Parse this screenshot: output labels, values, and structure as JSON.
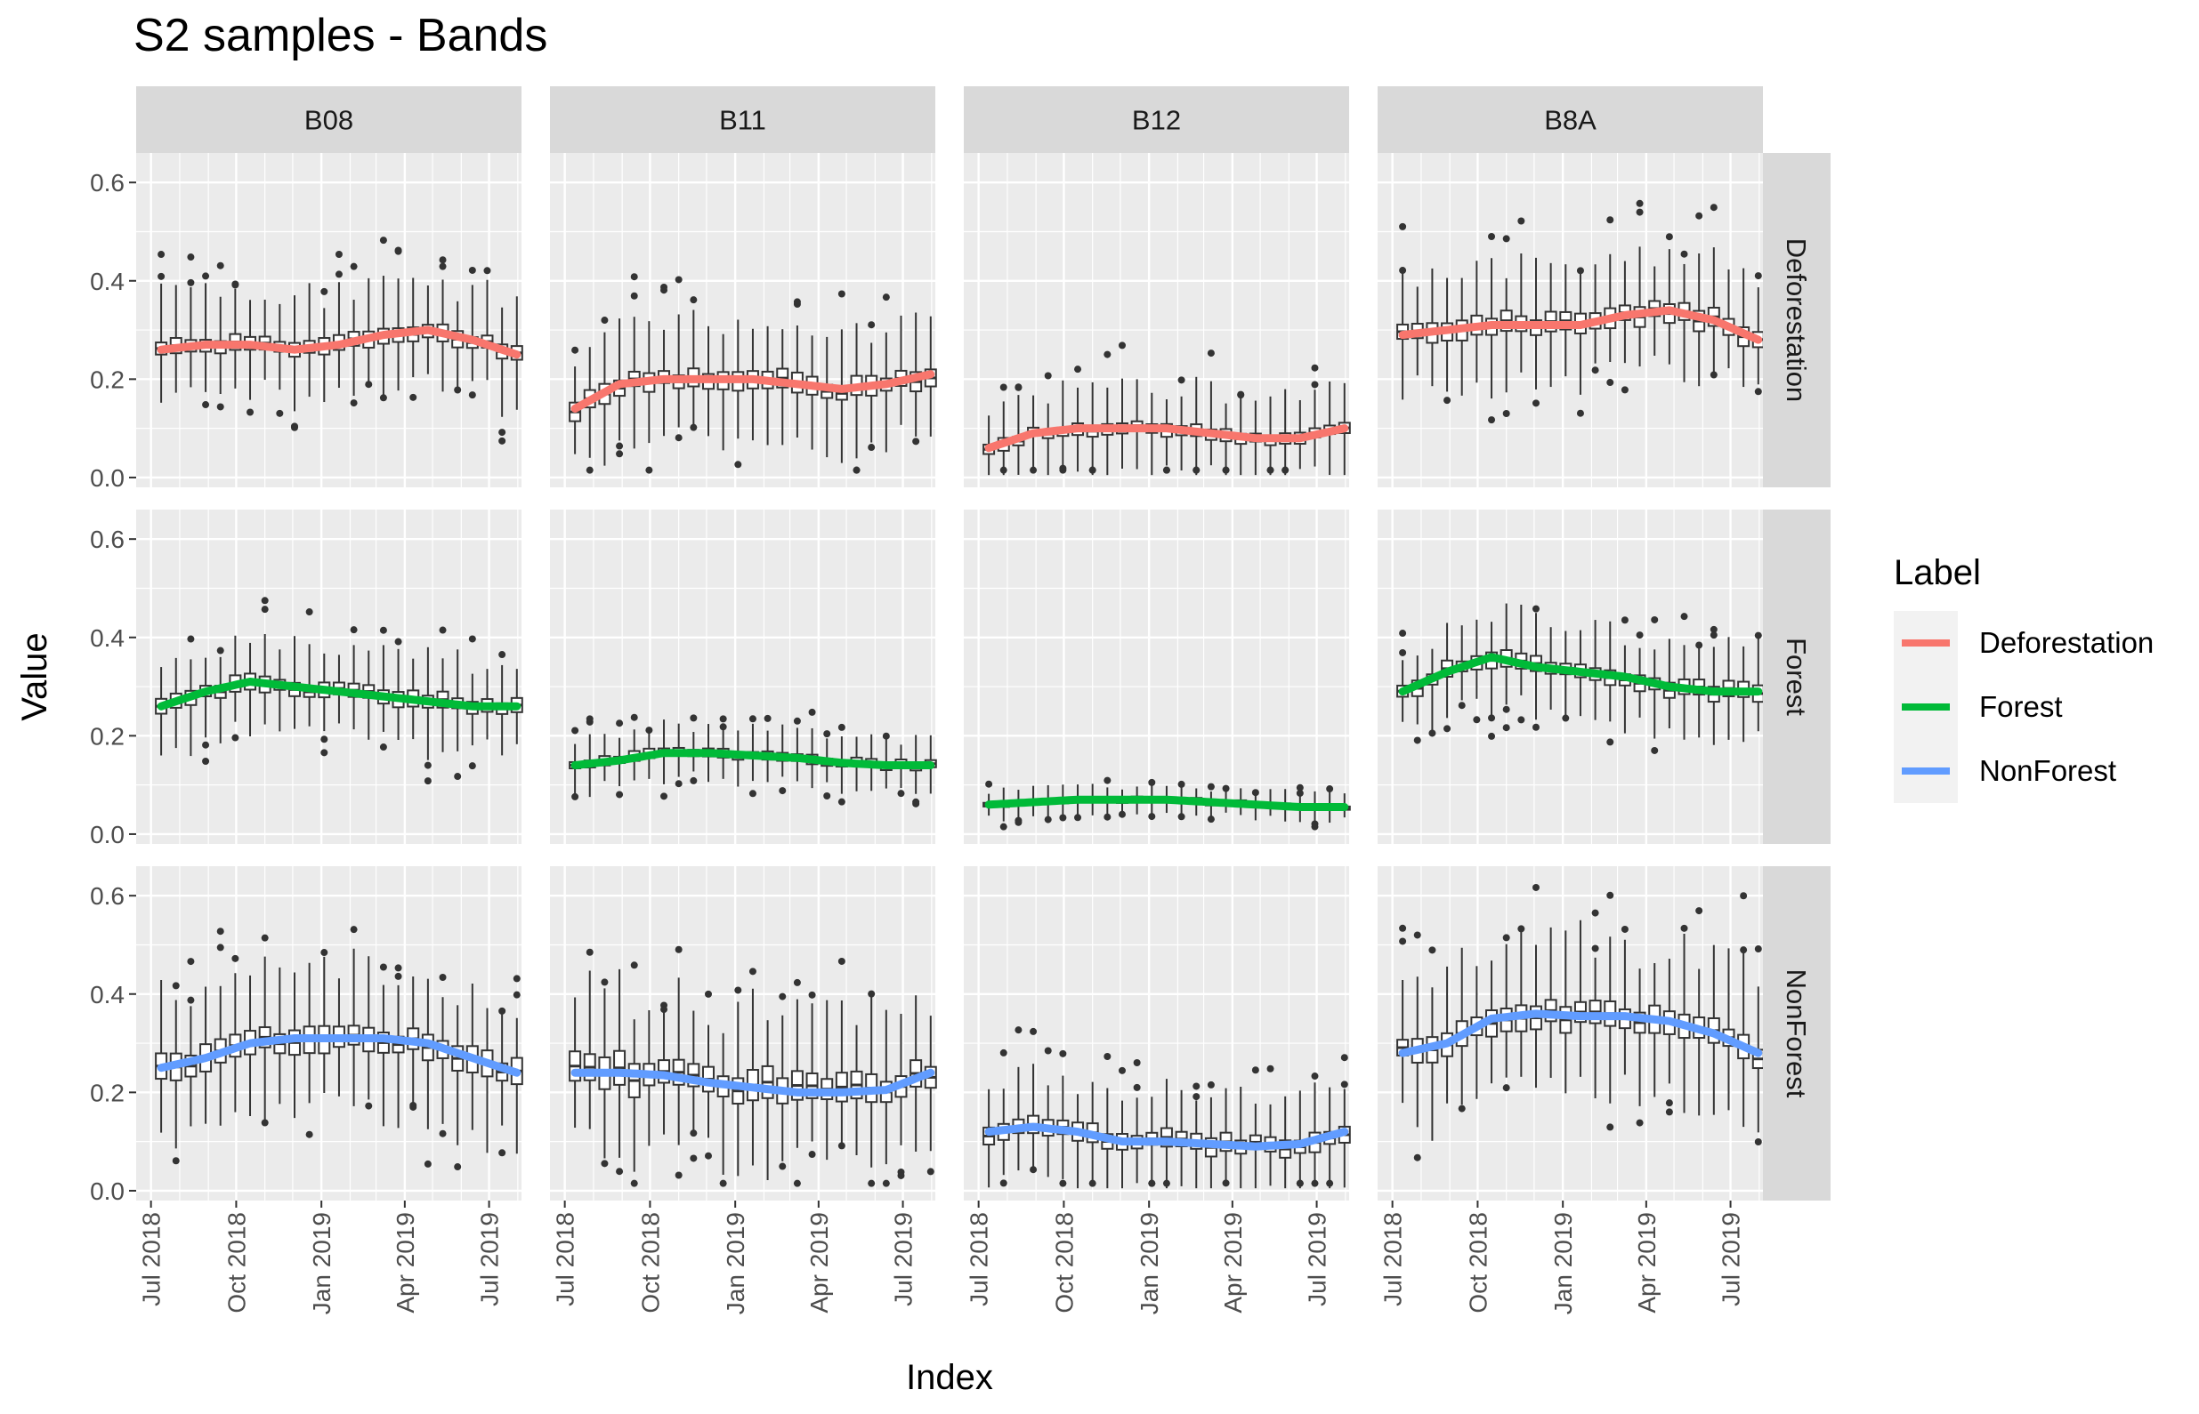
{
  "chart_data": {
    "type": "box",
    "title": "S2 samples - Bands",
    "xlabel": "Index",
    "ylabel": "Value",
    "ylim": [
      -0.02,
      0.66
    ],
    "y_ticks": [
      "0.0",
      "0.2",
      "0.4",
      "0.6"
    ],
    "x_ticks": [
      "Jul 2018",
      "Oct 2018",
      "Jan 2019",
      "Apr 2019",
      "Jul 2019"
    ],
    "x_range": [
      "2018-06-15",
      "2019-08-05"
    ],
    "x_tick_dates": [
      "2018-07-01",
      "2018-10-01",
      "2019-01-01",
      "2019-04-01",
      "2019-07-01"
    ],
    "first_date": "2018-07-12",
    "step_days": 16,
    "columns": [
      "B08",
      "B11",
      "B12",
      "B8A"
    ],
    "rows": [
      "Deforestation",
      "Forest",
      "NonForest"
    ],
    "legend": {
      "title": "Label",
      "position": "right",
      "entries": [
        {
          "name": "Deforestation",
          "color": "#F8766D"
        },
        {
          "name": "Forest",
          "color": "#00BA38"
        },
        {
          "name": "NonForest",
          "color": "#619CFF"
        }
      ]
    },
    "grid": true,
    "panel_background": "#EBEBEB",
    "strip_background": "#D9D9D9",
    "smooth_lines": {
      "Deforestation": {
        "B08": [
          0.26,
          0.27,
          0.27,
          0.26,
          0.27,
          0.29,
          0.3,
          0.28,
          0.25
        ],
        "B11": [
          0.14,
          0.19,
          0.2,
          0.2,
          0.2,
          0.19,
          0.18,
          0.19,
          0.21
        ],
        "B12": [
          0.06,
          0.09,
          0.1,
          0.1,
          0.1,
          0.09,
          0.08,
          0.08,
          0.1
        ],
        "B8A": [
          0.29,
          0.3,
          0.31,
          0.31,
          0.31,
          0.33,
          0.34,
          0.32,
          0.28
        ]
      },
      "Forest": {
        "B08": [
          0.26,
          0.29,
          0.31,
          0.3,
          0.29,
          0.28,
          0.27,
          0.26,
          0.26
        ],
        "B11": [
          0.14,
          0.15,
          0.165,
          0.165,
          0.16,
          0.155,
          0.145,
          0.14,
          0.14
        ],
        "B12": [
          0.06,
          0.065,
          0.07,
          0.07,
          0.07,
          0.065,
          0.06,
          0.055,
          0.055
        ],
        "B8A": [
          0.29,
          0.33,
          0.36,
          0.34,
          0.33,
          0.32,
          0.3,
          0.29,
          0.29
        ]
      },
      "NonForest": {
        "B08": [
          0.25,
          0.27,
          0.3,
          0.31,
          0.31,
          0.31,
          0.3,
          0.27,
          0.24
        ],
        "B11": [
          0.24,
          0.24,
          0.235,
          0.22,
          0.21,
          0.2,
          0.2,
          0.205,
          0.24
        ],
        "B12": [
          0.12,
          0.13,
          0.12,
          0.1,
          0.1,
          0.095,
          0.09,
          0.095,
          0.12
        ],
        "B8A": [
          0.28,
          0.3,
          0.35,
          0.36,
          0.355,
          0.355,
          0.345,
          0.32,
          0.28
        ]
      }
    },
    "box_spread": {
      "Deforestation": {
        "B08": [
          0.025,
          0.12
        ],
        "B11": [
          0.03,
          0.13
        ],
        "B12": [
          0.02,
          0.1
        ],
        "B8A": [
          0.03,
          0.13
        ]
      },
      "Forest": {
        "B08": [
          0.025,
          0.11
        ],
        "B11": [
          0.015,
          0.06
        ],
        "B12": [
          0.008,
          0.03
        ],
        "B8A": [
          0.025,
          0.1
        ]
      },
      "NonForest": {
        "B08": [
          0.04,
          0.16
        ],
        "B11": [
          0.05,
          0.17
        ],
        "B12": [
          0.03,
          0.11
        ],
        "B8A": [
          0.04,
          0.17
        ]
      }
    }
  }
}
